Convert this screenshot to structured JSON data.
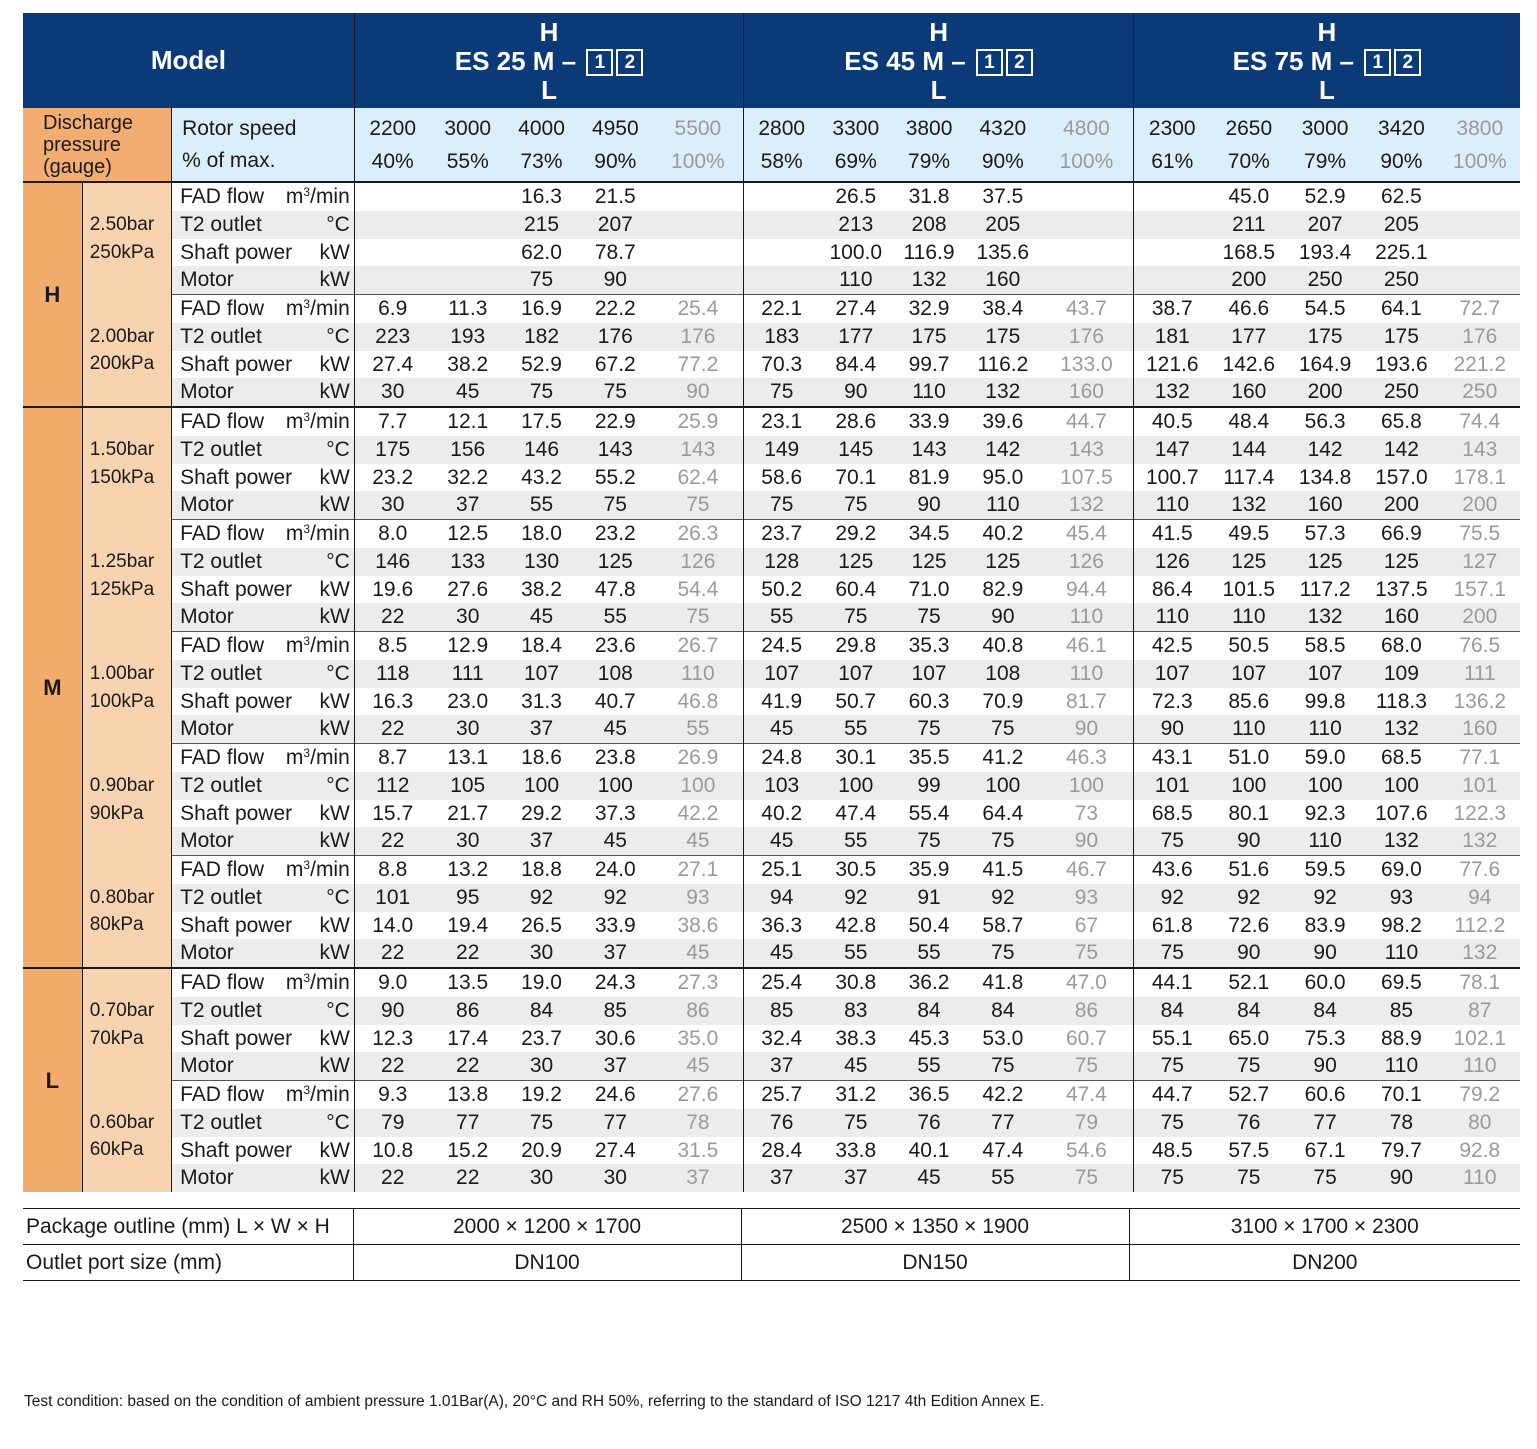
{
  "header": {
    "model_label": "Model",
    "models": [
      {
        "top": "H",
        "name": "ES 25 M –",
        "bottom": "L",
        "box1": "1",
        "box2": "2"
      },
      {
        "top": "H",
        "name": "ES 45 M –",
        "bottom": "L",
        "box1": "1",
        "box2": "2"
      },
      {
        "top": "H",
        "name": "ES 75 M –",
        "bottom": "L",
        "box1": "1",
        "box2": "2"
      }
    ]
  },
  "speed_row": {
    "discharge_label": "Discharge pressure (gauge)",
    "rotor_label_1": "Rotor speed",
    "rotor_label_2": "% of max.",
    "speeds": [
      [
        "2200",
        "3000",
        "4000",
        "4950",
        "5500"
      ],
      [
        "2800",
        "3300",
        "3800",
        "4320",
        "4800"
      ],
      [
        "2300",
        "2650",
        "3000",
        "3420",
        "3800"
      ]
    ],
    "percents": [
      [
        "40%",
        "55%",
        "73%",
        "90%",
        "100%"
      ],
      [
        "58%",
        "69%",
        "79%",
        "90%",
        "100%"
      ],
      [
        "61%",
        "70%",
        "79%",
        "90%",
        "100%"
      ]
    ]
  },
  "row_labels": [
    {
      "name": "FAD flow",
      "unit": "m³/min"
    },
    {
      "name": "T2 outlet",
      "unit": "°C"
    },
    {
      "name": "Shaft power",
      "unit": "kW"
    },
    {
      "name": "Motor",
      "unit": "kW"
    }
  ],
  "groups": [
    {
      "label": "H",
      "blocks": [
        {
          "bar": "2.50bar",
          "kpa": "250kPa",
          "rows": [
            [
              "",
              "",
              "16.3",
              "21.5",
              "",
              "",
              "26.5",
              "31.8",
              "37.5",
              "",
              "",
              "45.0",
              "52.9",
              "62.5",
              ""
            ],
            [
              "",
              "",
              "215",
              "207",
              "",
              "",
              "213",
              "208",
              "205",
              "",
              "",
              "211",
              "207",
              "205",
              ""
            ],
            [
              "",
              "",
              "62.0",
              "78.7",
              "",
              "",
              "100.0",
              "116.9",
              "135.6",
              "",
              "",
              "168.5",
              "193.4",
              "225.1",
              ""
            ],
            [
              "",
              "",
              "75",
              "90",
              "",
              "",
              "110",
              "132",
              "160",
              "",
              "",
              "200",
              "250",
              "250",
              ""
            ]
          ]
        },
        {
          "bar": "2.00bar",
          "kpa": "200kPa",
          "rows": [
            [
              "6.9",
              "11.3",
              "16.9",
              "22.2",
              "25.4",
              "22.1",
              "27.4",
              "32.9",
              "38.4",
              "43.7",
              "38.7",
              "46.6",
              "54.5",
              "64.1",
              "72.7"
            ],
            [
              "223",
              "193",
              "182",
              "176",
              "176",
              "183",
              "177",
              "175",
              "175",
              "176",
              "181",
              "177",
              "175",
              "175",
              "176"
            ],
            [
              "27.4",
              "38.2",
              "52.9",
              "67.2",
              "77.2",
              "70.3",
              "84.4",
              "99.7",
              "116.2",
              "133.0",
              "121.6",
              "142.6",
              "164.9",
              "193.6",
              "221.2"
            ],
            [
              "30",
              "45",
              "75",
              "75",
              "90",
              "75",
              "90",
              "110",
              "132",
              "160",
              "132",
              "160",
              "200",
              "250",
              "250"
            ]
          ]
        }
      ]
    },
    {
      "label": "M",
      "blocks": [
        {
          "bar": "1.50bar",
          "kpa": "150kPa",
          "rows": [
            [
              "7.7",
              "12.1",
              "17.5",
              "22.9",
              "25.9",
              "23.1",
              "28.6",
              "33.9",
              "39.6",
              "44.7",
              "40.5",
              "48.4",
              "56.3",
              "65.8",
              "74.4"
            ],
            [
              "175",
              "156",
              "146",
              "143",
              "143",
              "149",
              "145",
              "143",
              "142",
              "143",
              "147",
              "144",
              "142",
              "142",
              "143"
            ],
            [
              "23.2",
              "32.2",
              "43.2",
              "55.2",
              "62.4",
              "58.6",
              "70.1",
              "81.9",
              "95.0",
              "107.5",
              "100.7",
              "117.4",
              "134.8",
              "157.0",
              "178.1"
            ],
            [
              "30",
              "37",
              "55",
              "75",
              "75",
              "75",
              "75",
              "90",
              "110",
              "132",
              "110",
              "132",
              "160",
              "200",
              "200"
            ]
          ]
        },
        {
          "bar": "1.25bar",
          "kpa": "125kPa",
          "rows": [
            [
              "8.0",
              "12.5",
              "18.0",
              "23.2",
              "26.3",
              "23.7",
              "29.2",
              "34.5",
              "40.2",
              "45.4",
              "41.5",
              "49.5",
              "57.3",
              "66.9",
              "75.5"
            ],
            [
              "146",
              "133",
              "130",
              "125",
              "126",
              "128",
              "125",
              "125",
              "125",
              "126",
              "126",
              "125",
              "125",
              "125",
              "127"
            ],
            [
              "19.6",
              "27.6",
              "38.2",
              "47.8",
              "54.4",
              "50.2",
              "60.4",
              "71.0",
              "82.9",
              "94.4",
              "86.4",
              "101.5",
              "117.2",
              "137.5",
              "157.1"
            ],
            [
              "22",
              "30",
              "45",
              "55",
              "75",
              "55",
              "75",
              "75",
              "90",
              "110",
              "110",
              "110",
              "132",
              "160",
              "200"
            ]
          ]
        },
        {
          "bar": "1.00bar",
          "kpa": "100kPa",
          "rows": [
            [
              "8.5",
              "12.9",
              "18.4",
              "23.6",
              "26.7",
              "24.5",
              "29.8",
              "35.3",
              "40.8",
              "46.1",
              "42.5",
              "50.5",
              "58.5",
              "68.0",
              "76.5"
            ],
            [
              "118",
              "111",
              "107",
              "108",
              "110",
              "107",
              "107",
              "107",
              "108",
              "110",
              "107",
              "107",
              "107",
              "109",
              "111"
            ],
            [
              "16.3",
              "23.0",
              "31.3",
              "40.7",
              "46.8",
              "41.9",
              "50.7",
              "60.3",
              "70.9",
              "81.7",
              "72.3",
              "85.6",
              "99.8",
              "118.3",
              "136.2"
            ],
            [
              "22",
              "30",
              "37",
              "45",
              "55",
              "45",
              "55",
              "75",
              "75",
              "90",
              "90",
              "110",
              "110",
              "132",
              "160"
            ]
          ]
        },
        {
          "bar": "0.90bar",
          "kpa": "90kPa",
          "rows": [
            [
              "8.7",
              "13.1",
              "18.6",
              "23.8",
              "26.9",
              "24.8",
              "30.1",
              "35.5",
              "41.2",
              "46.3",
              "43.1",
              "51.0",
              "59.0",
              "68.5",
              "77.1"
            ],
            [
              "112",
              "105",
              "100",
              "100",
              "100",
              "103",
              "100",
              "99",
              "100",
              "100",
              "101",
              "100",
              "100",
              "100",
              "101"
            ],
            [
              "15.7",
              "21.7",
              "29.2",
              "37.3",
              "42.2",
              "40.2",
              "47.4",
              "55.4",
              "64.4",
              "73",
              "68.5",
              "80.1",
              "92.3",
              "107.6",
              "122.3"
            ],
            [
              "22",
              "30",
              "37",
              "45",
              "45",
              "45",
              "55",
              "75",
              "75",
              "90",
              "75",
              "90",
              "110",
              "132",
              "132"
            ]
          ]
        },
        {
          "bar": "0.80bar",
          "kpa": "80kPa",
          "rows": [
            [
              "8.8",
              "13.2",
              "18.8",
              "24.0",
              "27.1",
              "25.1",
              "30.5",
              "35.9",
              "41.5",
              "46.7",
              "43.6",
              "51.6",
              "59.5",
              "69.0",
              "77.6"
            ],
            [
              "101",
              "95",
              "92",
              "92",
              "93",
              "94",
              "92",
              "91",
              "92",
              "93",
              "92",
              "92",
              "92",
              "93",
              "94"
            ],
            [
              "14.0",
              "19.4",
              "26.5",
              "33.9",
              "38.6",
              "36.3",
              "42.8",
              "50.4",
              "58.7",
              "67",
              "61.8",
              "72.6",
              "83.9",
              "98.2",
              "112.2"
            ],
            [
              "22",
              "22",
              "30",
              "37",
              "45",
              "45",
              "55",
              "55",
              "75",
              "75",
              "75",
              "90",
              "90",
              "110",
              "132"
            ]
          ]
        }
      ]
    },
    {
      "label": "L",
      "blocks": [
        {
          "bar": "0.70bar",
          "kpa": "70kPa",
          "rows": [
            [
              "9.0",
              "13.5",
              "19.0",
              "24.3",
              "27.3",
              "25.4",
              "30.8",
              "36.2",
              "41.8",
              "47.0",
              "44.1",
              "52.1",
              "60.0",
              "69.5",
              "78.1"
            ],
            [
              "90",
              "86",
              "84",
              "85",
              "86",
              "85",
              "83",
              "84",
              "84",
              "86",
              "84",
              "84",
              "84",
              "85",
              "87"
            ],
            [
              "12.3",
              "17.4",
              "23.7",
              "30.6",
              "35.0",
              "32.4",
              "38.3",
              "45.3",
              "53.0",
              "60.7",
              "55.1",
              "65.0",
              "75.3",
              "88.9",
              "102.1"
            ],
            [
              "22",
              "22",
              "30",
              "37",
              "45",
              "37",
              "45",
              "55",
              "75",
              "75",
              "75",
              "75",
              "90",
              "110",
              "110"
            ]
          ]
        },
        {
          "bar": "0.60bar",
          "kpa": "60kPa",
          "rows": [
            [
              "9.3",
              "13.8",
              "19.2",
              "24.6",
              "27.6",
              "25.7",
              "31.2",
              "36.5",
              "42.2",
              "47.4",
              "44.7",
              "52.7",
              "60.6",
              "70.1",
              "79.2"
            ],
            [
              "79",
              "77",
              "75",
              "77",
              "78",
              "76",
              "75",
              "76",
              "77",
              "79",
              "75",
              "76",
              "77",
              "78",
              "80"
            ],
            [
              "10.8",
              "15.2",
              "20.9",
              "27.4",
              "31.5",
              "28.4",
              "33.8",
              "40.1",
              "47.4",
              "54.6",
              "48.5",
              "57.5",
              "67.1",
              "79.7",
              "92.8"
            ],
            [
              "22",
              "22",
              "30",
              "30",
              "37",
              "37",
              "37",
              "45",
              "55",
              "75",
              "75",
              "75",
              "75",
              "90",
              "110"
            ]
          ]
        }
      ]
    }
  ],
  "package": {
    "outline_label": "Package outline (mm) L × W × H",
    "outlines": [
      "2000 × 1200 × 1700",
      "2500 × 1350 × 1900",
      "3100 × 1700 × 2300"
    ],
    "port_label": "Outlet port size (mm)",
    "ports": [
      "DN100",
      "DN150",
      "DN200"
    ]
  },
  "note": "Test condition: based on the condition of ambient pressure 1.01Bar(A), 20°C and RH 50%, referring to the standard of ISO 1217 4th Edition Annex E."
}
